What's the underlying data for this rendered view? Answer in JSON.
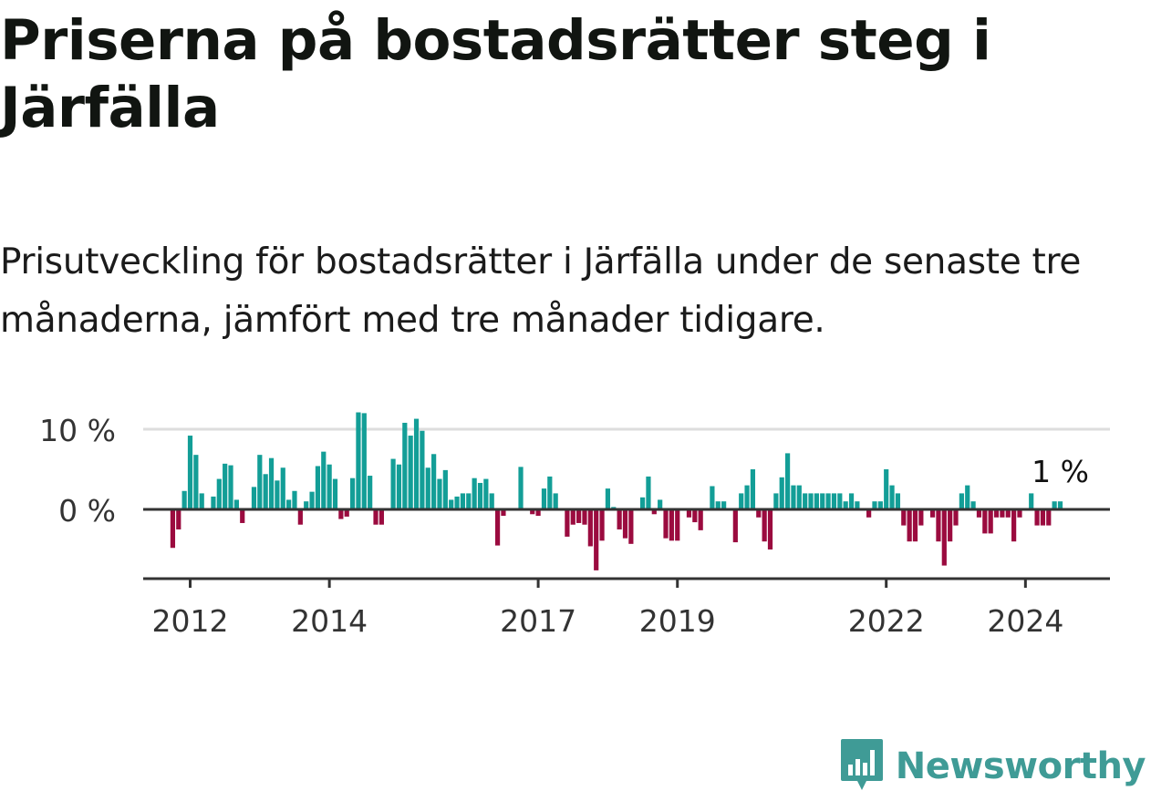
{
  "title": "Priserna på bostadsrätter steg i Järfälla",
  "subtitle": "Prisutveckling för bostadsrätter i Järfälla under de senaste tre månaderna, jämfört med tre månader tidigare.",
  "brand": {
    "name": "Newsworthy",
    "icon": "newsworthy-logo-icon"
  },
  "colors": {
    "positive": "#139e97",
    "negative": "#9b0b3f",
    "axis": "#333333",
    "grid": "#dddddd",
    "brand": "#3f9b96"
  },
  "chart_data": {
    "type": "bar",
    "title": "Priserna på bostadsrätter steg i Järfälla",
    "xlabel": "",
    "ylabel": "",
    "ylim": [
      -8.6,
      12.3
    ],
    "x_ticks": [
      "2012",
      "2014",
      "2017",
      "2019",
      "2022",
      "2024"
    ],
    "y_ticks": [
      {
        "value": 0,
        "label": "0 %"
      },
      {
        "value": 10,
        "label": "10 %"
      }
    ],
    "annotation": {
      "label": "1 %",
      "value": 1
    },
    "start": "2011-10",
    "values": [
      -4.8,
      -2.5,
      2.3,
      9.2,
      6.8,
      2.0,
      0.0,
      1.6,
      3.8,
      5.7,
      5.5,
      1.2,
      -1.7,
      0.0,
      2.8,
      6.8,
      4.4,
      6.4,
      3.6,
      5.2,
      1.2,
      2.3,
      -1.9,
      1.0,
      2.2,
      5.4,
      7.2,
      5.6,
      3.8,
      -1.2,
      -0.9,
      3.9,
      12.1,
      12.0,
      4.2,
      -1.9,
      -1.9,
      0.0,
      6.3,
      5.6,
      10.8,
      9.2,
      11.3,
      9.8,
      5.2,
      6.9,
      3.8,
      4.9,
      1.2,
      1.6,
      2.0,
      2.0,
      3.9,
      3.3,
      3.8,
      2.0,
      -4.5,
      -0.8,
      0.0,
      0.0,
      5.3,
      0.0,
      -0.6,
      -0.8,
      2.6,
      4.1,
      2.0,
      0.0,
      -3.4,
      -1.9,
      -1.7,
      -1.9,
      -4.6,
      -7.6,
      -3.9,
      2.6,
      0.3,
      -2.5,
      -3.6,
      -4.3,
      0.0,
      1.5,
      4.1,
      -0.6,
      1.2,
      -3.6,
      -3.9,
      -3.9,
      0.0,
      -1.0,
      -1.6,
      -2.6,
      0.0,
      2.9,
      1.0,
      1.0,
      0.0,
      -4.1,
      2.0,
      3.0,
      5.0,
      -1.0,
      -4.0,
      -5.0,
      2.0,
      4.0,
      7.0,
      3.0,
      3.0,
      2.0,
      2.0,
      2.0,
      2.0,
      2.0,
      2.0,
      2.0,
      1.0,
      2.0,
      1.0,
      0.0,
      -1.0,
      1.0,
      1.0,
      5.0,
      3.0,
      2.0,
      -2.0,
      -4.0,
      -4.0,
      -2.0,
      0.0,
      -1.0,
      -4.0,
      -7.0,
      -4.0,
      -2.0,
      2.0,
      3.0,
      1.0,
      -1.0,
      -3.0,
      -3.0,
      -1.0,
      -1.0,
      -1.0,
      -4.0,
      -1.0,
      0.0,
      2.0,
      -2.0,
      -2.0,
      -2.0,
      1.0,
      1.0
    ]
  }
}
